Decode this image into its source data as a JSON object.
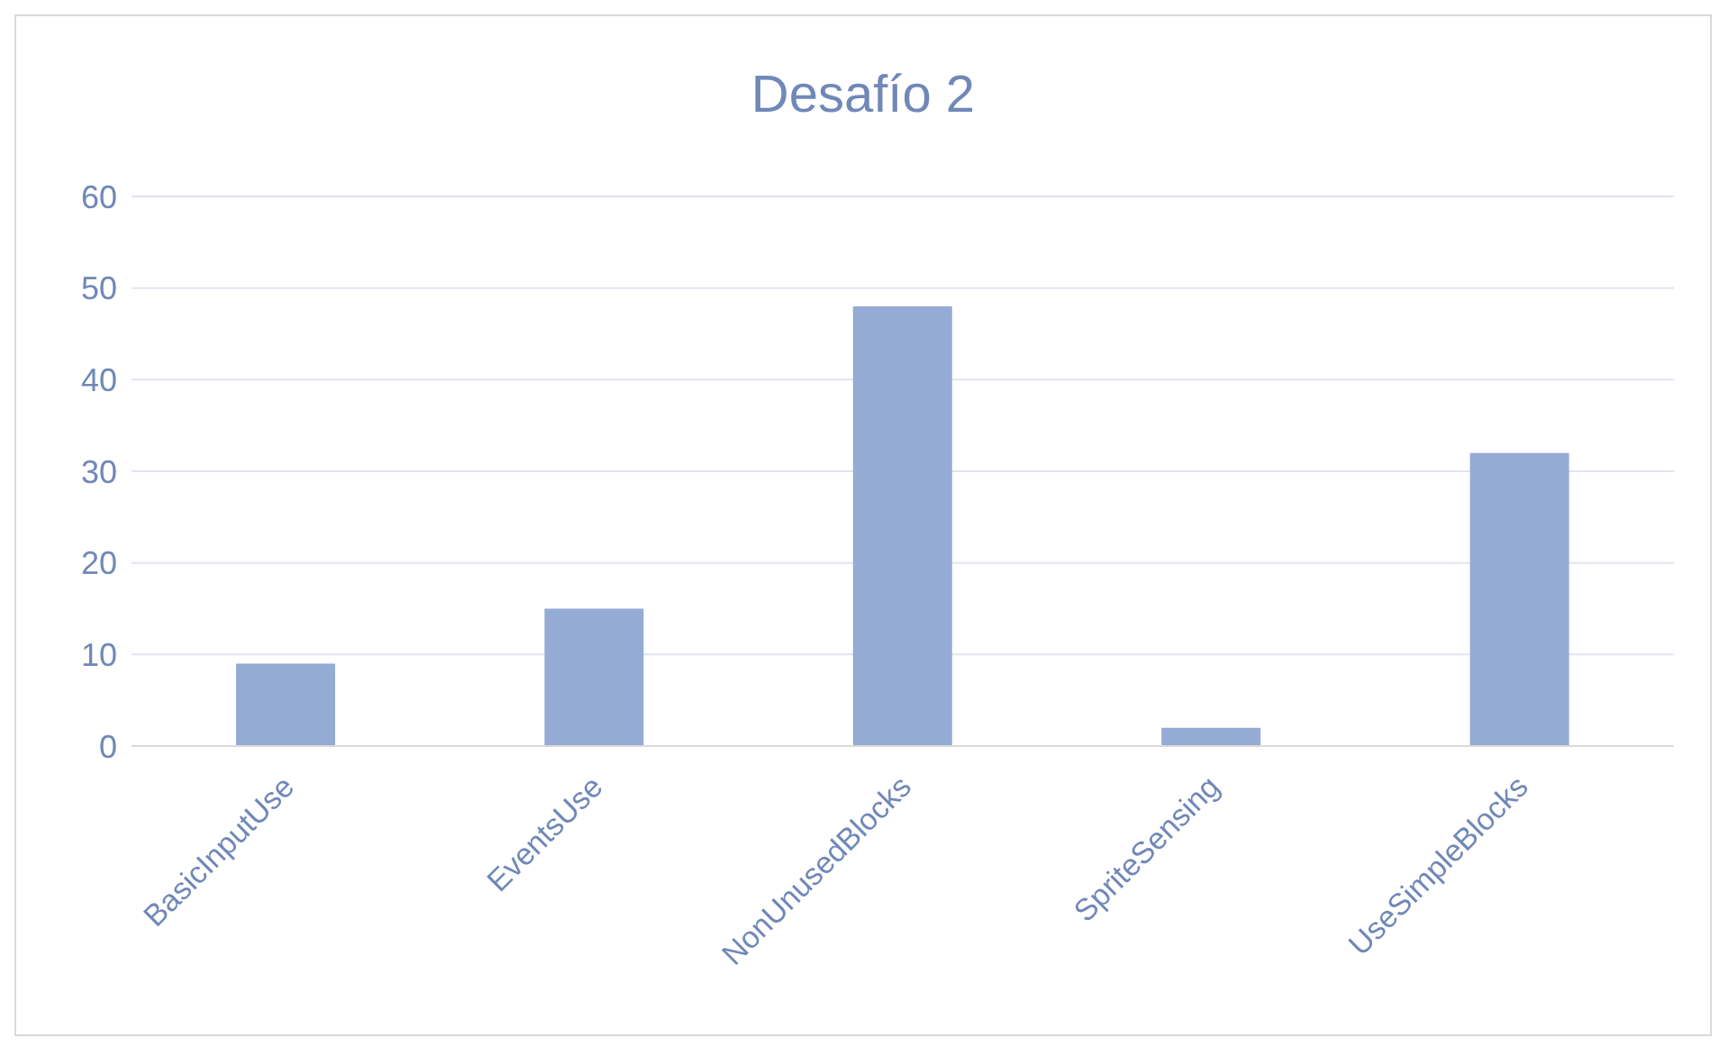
{
  "chart_data": {
    "type": "bar",
    "title": "Desafío 2",
    "categories": [
      "BasicInputUse",
      "EventsUse",
      "NonUnusedBlocks",
      "SpriteSensing",
      "UseSimpleBlocks"
    ],
    "values": [
      9,
      15,
      48,
      2,
      32
    ],
    "color": "#95abd3",
    "ylim": [
      0,
      60
    ],
    "yticks": [
      0,
      10,
      20,
      30,
      40,
      50,
      60
    ],
    "grid": "y"
  }
}
